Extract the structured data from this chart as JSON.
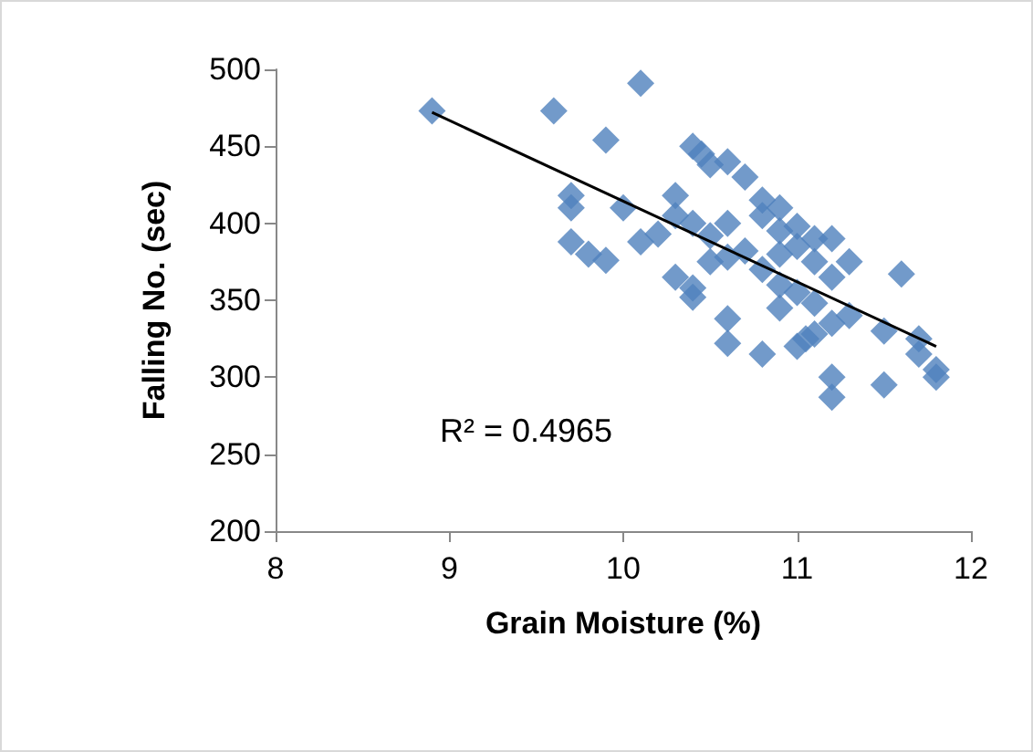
{
  "chart_data": {
    "type": "scatter",
    "xlabel": "Grain Moisture (%)",
    "ylabel": "Falling No. (sec)",
    "xlim": [
      8,
      12
    ],
    "xticks": [
      8,
      9,
      10,
      11,
      12
    ],
    "ylim": [
      200,
      500
    ],
    "yticks": [
      200,
      250,
      300,
      350,
      400,
      450,
      500
    ],
    "grid": false,
    "marker": "diamond",
    "annotations": [
      "R² = 0.4965"
    ],
    "series": [
      {
        "color": "#4f81bd",
        "x": [
          8.9,
          9.6,
          10.1,
          9.9,
          9.7,
          9.7,
          9.7,
          9.8,
          9.9,
          10.0,
          10.1,
          10.2,
          10.3,
          10.3,
          10.3,
          10.4,
          10.4,
          10.4,
          10.45,
          10.5,
          10.4,
          10.5,
          10.5,
          10.6,
          10.6,
          10.6,
          10.6,
          10.6,
          10.7,
          10.7,
          10.8,
          10.8,
          10.8,
          10.8,
          10.9,
          10.9,
          10.9,
          10.9,
          10.9,
          11.0,
          11.0,
          11.0,
          11.0,
          11.1,
          11.1,
          11.1,
          11.1,
          11.2,
          11.2,
          11.2,
          11.2,
          11.2,
          11.3,
          11.3,
          11.5,
          11.5,
          11.6,
          11.7,
          11.7,
          11.8,
          11.8,
          11.05
        ],
        "values": [
          473,
          473,
          491,
          454,
          418,
          410,
          388,
          380,
          376,
          410,
          388,
          393,
          418,
          405,
          365,
          358,
          352,
          450,
          445,
          438,
          400,
          392,
          375,
          440,
          400,
          378,
          338,
          322,
          430,
          382,
          415,
          405,
          370,
          315,
          410,
          395,
          380,
          360,
          345,
          398,
          385,
          355,
          320,
          390,
          375,
          348,
          328,
          390,
          365,
          335,
          300,
          287,
          375,
          340,
          330,
          295,
          367,
          325,
          315,
          305,
          300,
          325
        ]
      },
      {
        "type": "line",
        "color": "#000000",
        "line_style": "solid",
        "marker": "none",
        "x": [
          8.9,
          11.8
        ],
        "values": [
          472,
          320
        ]
      }
    ]
  }
}
